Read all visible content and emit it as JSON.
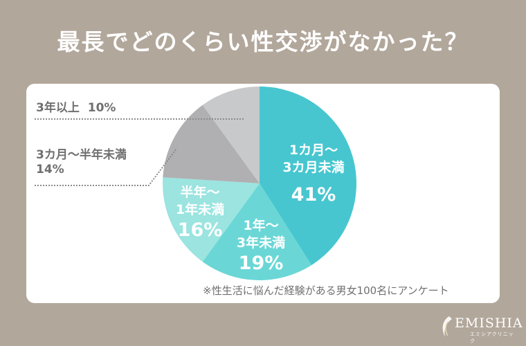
{
  "title": "最長でどのくらい性交渉がなかった？",
  "footnote": "※性生活に悩んだ経験がある男女100名にアンケート",
  "logo": {
    "name": "EMISHIA",
    "sub": "エミシアクリニック"
  },
  "colors": {
    "background": "#b2a79b",
    "card": "#ffffff",
    "slice1": "#47c6cf",
    "slice2": "#6ad7d6",
    "slice3": "#9be4e0",
    "slice4": "#b0b0b2",
    "slice5": "#c8c9cb",
    "leader": "#8a8a8a"
  },
  "chart_data": {
    "type": "pie",
    "title": "最長でどのくらい性交渉がなかった？",
    "slices": [
      {
        "line1": "1カ月～",
        "line2": "3カ月未満",
        "value": 41,
        "pct_label": "41%"
      },
      {
        "line1": "1年～",
        "line2": "3年未満",
        "value": 19,
        "pct_label": "19%"
      },
      {
        "line1": "半年～",
        "line2": "1年未満",
        "value": 16,
        "pct_label": "16%"
      },
      {
        "line1": "3カ月～半年未満",
        "line2": "",
        "value": 14,
        "pct_label": "14%"
      },
      {
        "line1": "3年以上",
        "line2": "",
        "value": 10,
        "pct_label": "10%"
      }
    ]
  }
}
